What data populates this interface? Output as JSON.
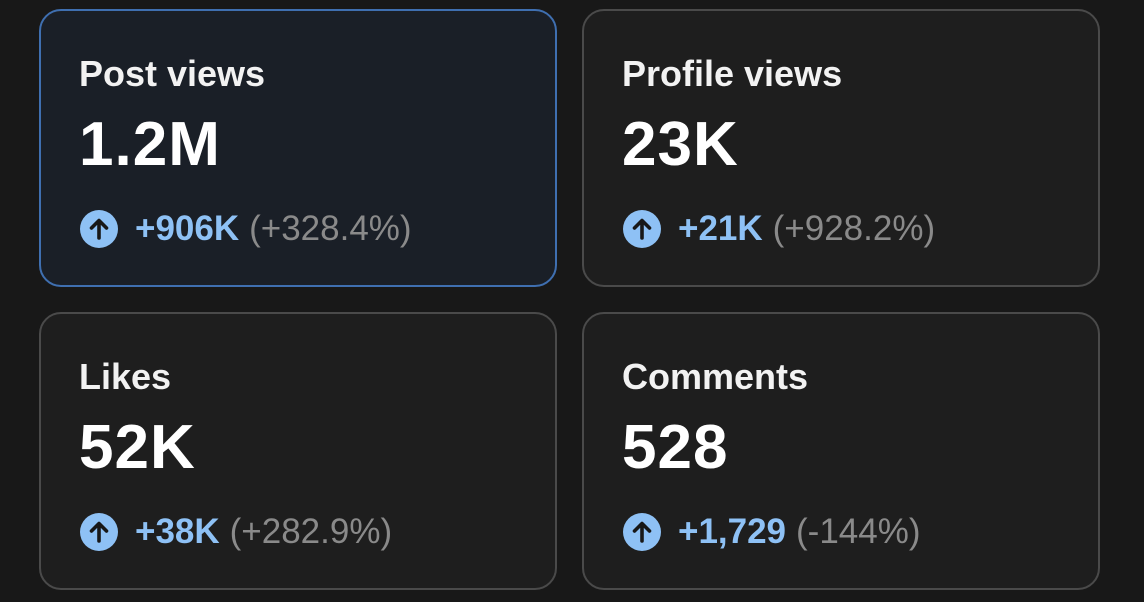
{
  "colors": {
    "background": "#181818",
    "card_border": "#4a4a4a",
    "selected_border": "#3f6fb0",
    "accent": "#8ec1f5",
    "muted": "#8a8a8a"
  },
  "cards": [
    {
      "label": "Post views",
      "value": "1.2M",
      "delta": "+906K",
      "delta_pct": "(+328.4%)",
      "icon": "arrow-up-circle-icon",
      "selected": true
    },
    {
      "label": "Profile views",
      "value": "23K",
      "delta": "+21K",
      "delta_pct": "(+928.2%)",
      "icon": "arrow-up-circle-icon",
      "selected": false
    },
    {
      "label": "Likes",
      "value": "52K",
      "delta": "+38K",
      "delta_pct": "(+282.9%)",
      "icon": "arrow-up-circle-icon",
      "selected": false
    },
    {
      "label": "Comments",
      "value": "528",
      "delta": "+1,729",
      "delta_pct": "(-144%)",
      "icon": "arrow-up-circle-icon",
      "selected": false
    }
  ]
}
